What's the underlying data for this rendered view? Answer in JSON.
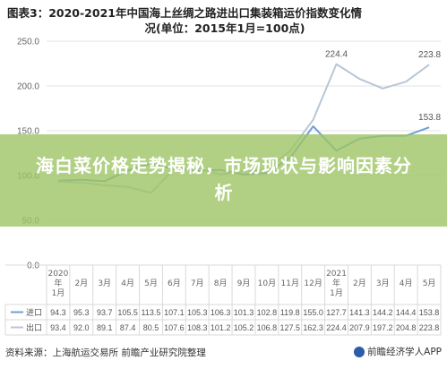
{
  "title_line1": "图表3：2020-2021年中国海上丝绸之路进出口集装箱运价指数变化情",
  "title_line2": "况(单位：2015年1月=100点)",
  "overlay_title": "海白菜价格走势揭秘，市场现状与影响因素分析",
  "source": "资料来源：上海航运交易所 前瞻产业研究院整理",
  "brand": "前瞻经济学人APP",
  "colors": {
    "import": "#6f9fd8",
    "export": "#b8c6d6",
    "overlay": "#9ec464"
  },
  "chart_data": {
    "type": "line",
    "categories": [
      "2020年1月",
      "2月",
      "3月",
      "4月",
      "5月",
      "6月",
      "7月",
      "8月",
      "9月",
      "10月",
      "11月",
      "12月",
      "2021年1月",
      "2月",
      "3月",
      "4月",
      "5月"
    ],
    "category_lines": [
      [
        "2020",
        "年",
        "1月"
      ],
      [
        "2月"
      ],
      [
        "3月"
      ],
      [
        "4月"
      ],
      [
        "5月"
      ],
      [
        "6月"
      ],
      [
        "7月"
      ],
      [
        "8月"
      ],
      [
        "9月"
      ],
      [
        "10月"
      ],
      [
        "11月"
      ],
      [
        "12月"
      ],
      [
        "2021",
        "年",
        "1月"
      ],
      [
        "2月"
      ],
      [
        "3月"
      ],
      [
        "4月"
      ],
      [
        "5月"
      ]
    ],
    "ylim": [
      0,
      250
    ],
    "yticks": [
      0,
      50,
      100,
      150,
      200,
      250
    ],
    "series": [
      {
        "name": "进口",
        "table_values": [
          "94.3",
          "95.3",
          "93.7",
          "105.5",
          "113.5",
          "107.1",
          "105.3",
          "106.3",
          "101.3",
          "102.8",
          "119.8",
          "155.0",
          "127.7",
          "141.3",
          "144.2",
          "144.4",
          "153.8"
        ],
        "values": [
          94.3,
          95.3,
          93.7,
          105.5,
          113.5,
          107.1,
          105.3,
          106.3,
          101.3,
          102.8,
          119.8,
          155.0,
          127.7,
          141.3,
          144.2,
          144.4,
          153.8
        ]
      },
      {
        "name": "出口",
        "table_values": [
          "93.4",
          "92.0",
          "89.1",
          "87.4",
          "80.5",
          "107.6",
          "108.3",
          "101.2",
          "105.2",
          "106.8",
          "127.5",
          "162.3",
          "224.4",
          "207.9",
          "197.2",
          "204.8",
          "223.8"
        ],
        "values": [
          93.4,
          92.0,
          89.1,
          87.4,
          80.5,
          107.6,
          108.3,
          101.2,
          105.2,
          106.8,
          127.5,
          162.3,
          224.4,
          207.9,
          197.2,
          204.8,
          223.8
        ]
      }
    ],
    "data_labels": [
      {
        "series": 1,
        "index": 12,
        "text": "224.4"
      },
      {
        "series": 1,
        "index": 16,
        "text": "223.8"
      },
      {
        "series": 0,
        "index": 16,
        "text": "153.8"
      }
    ]
  }
}
